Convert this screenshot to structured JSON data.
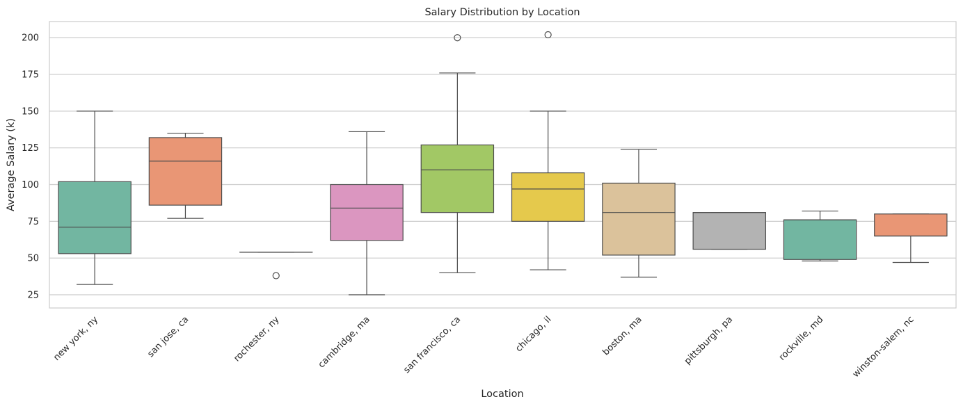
{
  "chart_data": {
    "type": "box",
    "title": "Salary Distribution by Location",
    "xlabel": "Location",
    "ylabel": "Average Salary (k)",
    "ylim": [
      16,
      211
    ],
    "yticks": [
      25,
      50,
      75,
      100,
      125,
      150,
      175,
      200
    ],
    "grid": true,
    "categories": [
      "new york, ny",
      "san jose, ca",
      "rochester, ny",
      "cambridge, ma",
      "san francisco, ca",
      "chicago, il",
      "boston, ma",
      "pittsburgh, pa",
      "rockville, md",
      "winston-salem, nc"
    ],
    "boxes": [
      {
        "whisker_low": 32,
        "q1": 53,
        "median": 71,
        "q3": 102,
        "whisker_high": 150,
        "outliers": [],
        "color": "#72b6a1"
      },
      {
        "whisker_low": 77,
        "q1": 86,
        "median": 116,
        "q3": 132,
        "whisker_high": 135,
        "outliers": [],
        "color": "#e99675"
      },
      {
        "whisker_low": 54,
        "q1": 54,
        "median": 54,
        "q3": 54,
        "whisker_high": 54,
        "outliers": [
          38
        ],
        "color": "#95a3c3"
      },
      {
        "whisker_low": 25,
        "q1": 62,
        "median": 84,
        "q3": 100,
        "whisker_high": 136,
        "outliers": [],
        "color": "#db96c0"
      },
      {
        "whisker_low": 40,
        "q1": 81,
        "median": 110,
        "q3": 127,
        "whisker_high": 176,
        "outliers": [
          200
        ],
        "color": "#a2c865"
      },
      {
        "whisker_low": 42,
        "q1": 75,
        "median": 97,
        "q3": 108,
        "whisker_high": 150,
        "outliers": [
          202
        ],
        "color": "#e5c94c"
      },
      {
        "whisker_low": 37,
        "q1": 52,
        "median": 81,
        "q3": 101,
        "whisker_high": 124,
        "outliers": [],
        "color": "#dbc29b"
      },
      {
        "whisker_low": 56,
        "q1": 56,
        "median": 81,
        "q3": 81,
        "whisker_high": 81,
        "outliers": [],
        "color": "#b3b3b3"
      },
      {
        "whisker_low": 48,
        "q1": 49,
        "median": 76,
        "q3": 76,
        "whisker_high": 82,
        "outliers": [],
        "color": "#72b6a1"
      },
      {
        "whisker_low": 47,
        "q1": 65,
        "median": 65,
        "q3": 80,
        "whisker_high": 80,
        "outliers": [],
        "color": "#e99675"
      }
    ]
  }
}
